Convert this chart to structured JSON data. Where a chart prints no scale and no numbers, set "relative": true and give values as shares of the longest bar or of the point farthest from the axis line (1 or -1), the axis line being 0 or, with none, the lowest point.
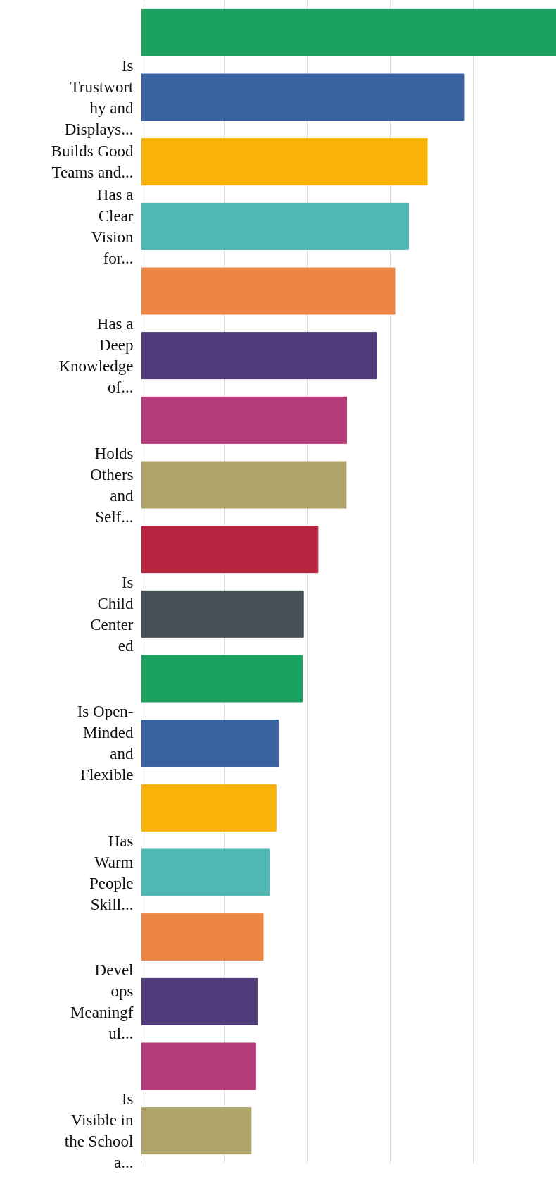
{
  "chart_data": {
    "type": "bar",
    "orientation": "horizontal",
    "relative": true,
    "grid": "x",
    "categories": [
      null,
      "Is\nTrustwort\nhy and\nDisplays...",
      "Builds Good\nTeams and...",
      "Has a\nClear\nVision\nfor...",
      null,
      "Has a\nDeep\nKnowledge\nof...",
      null,
      "Holds\nOthers\nand\nSelf...",
      null,
      "Is\nChild\nCenter\ned",
      null,
      "Is Open-\nMinded\nand\nFlexible",
      null,
      "Has\nWarm\nPeople\nSkill...",
      null,
      "Devel\nops\nMeaningf\nul...",
      null,
      "Is\nVisible in\nthe School\na..."
    ],
    "values": [
      1,
      0.777,
      0.689,
      0.644,
      0.611,
      0.567,
      0.495,
      0.494,
      0.426,
      0.391,
      0.388,
      0.331,
      0.325,
      0.309,
      0.294,
      0.28,
      0.276,
      0.265
    ],
    "colors": [
      "#1aa15f",
      "#3a62a0",
      "#f9b207",
      "#4db8b4",
      "#ec8444",
      "#4f3a7a",
      "#b53b7a",
      "#aea46a",
      "#b5253f",
      "#455155",
      "#1aa15f",
      "#3a62a0",
      "#f9b207",
      "#4db8b4",
      "#ec8444",
      "#4f3a7a",
      "#b53b7a",
      "#aea46a"
    ]
  }
}
